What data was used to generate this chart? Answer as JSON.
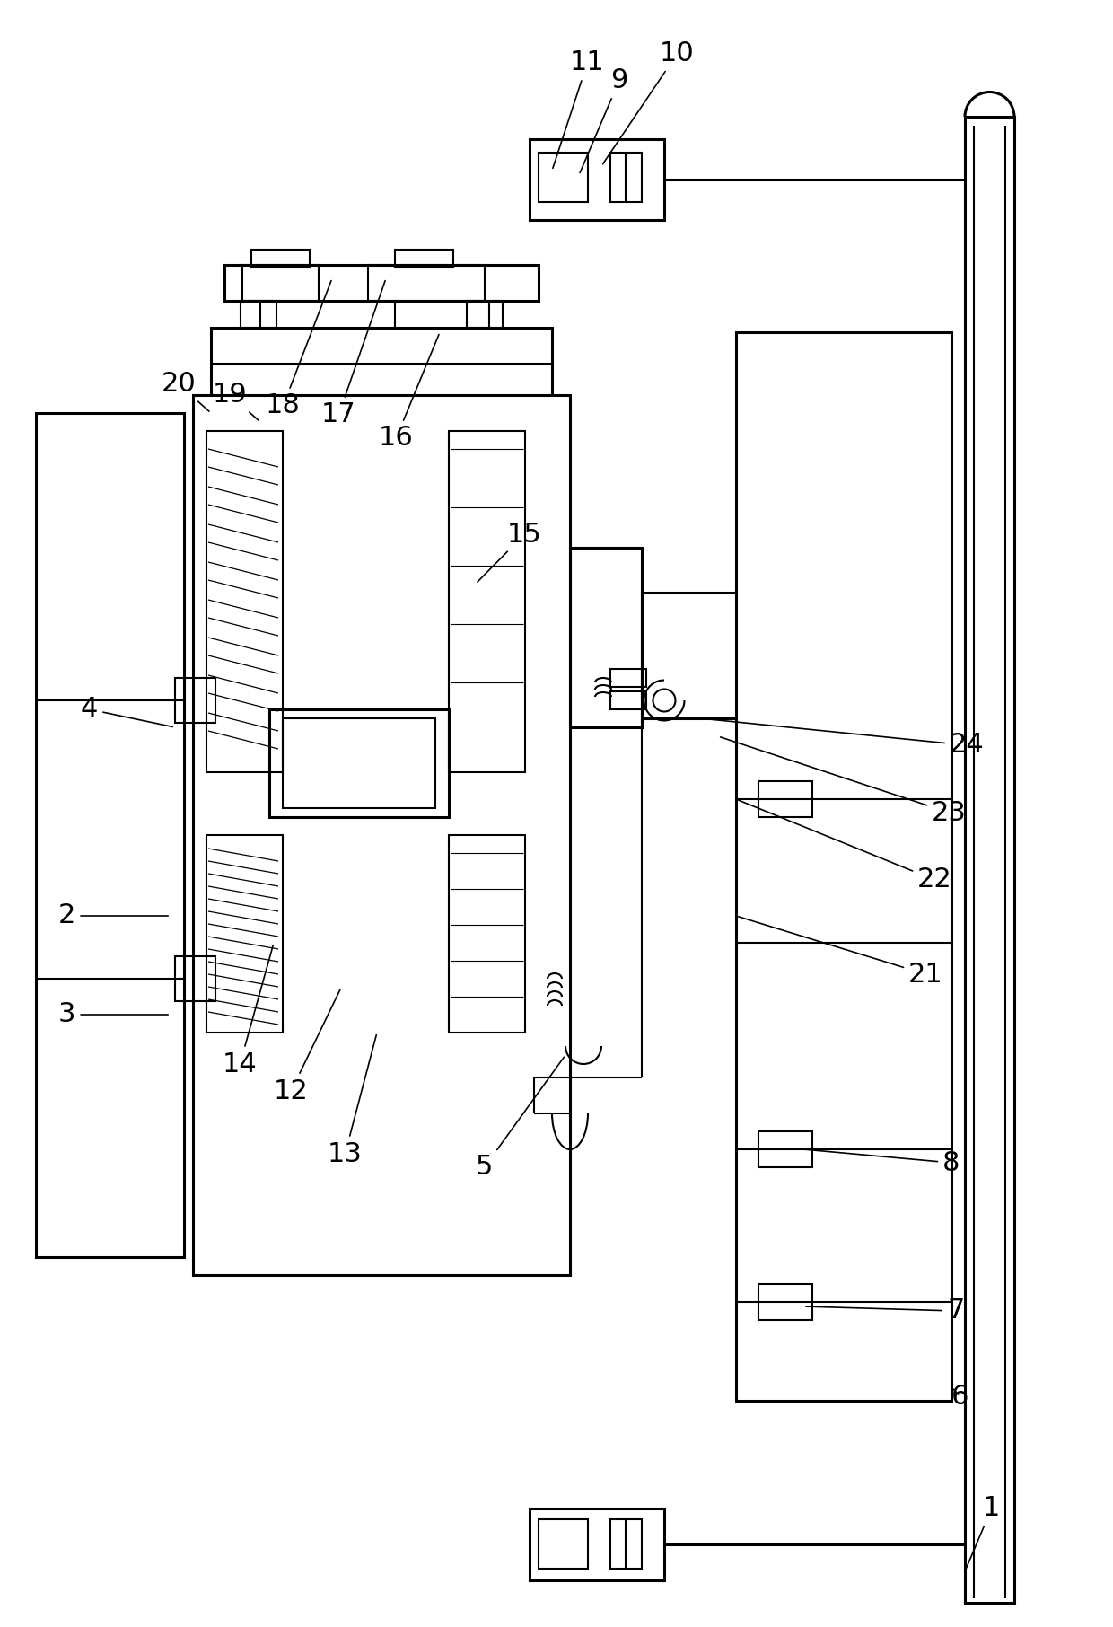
{
  "bg_color": "#ffffff",
  "line_color": "#000000",
  "lw": 1.5,
  "lw2": 2.2,
  "fig_width": 12.4,
  "fig_height": 18.12
}
